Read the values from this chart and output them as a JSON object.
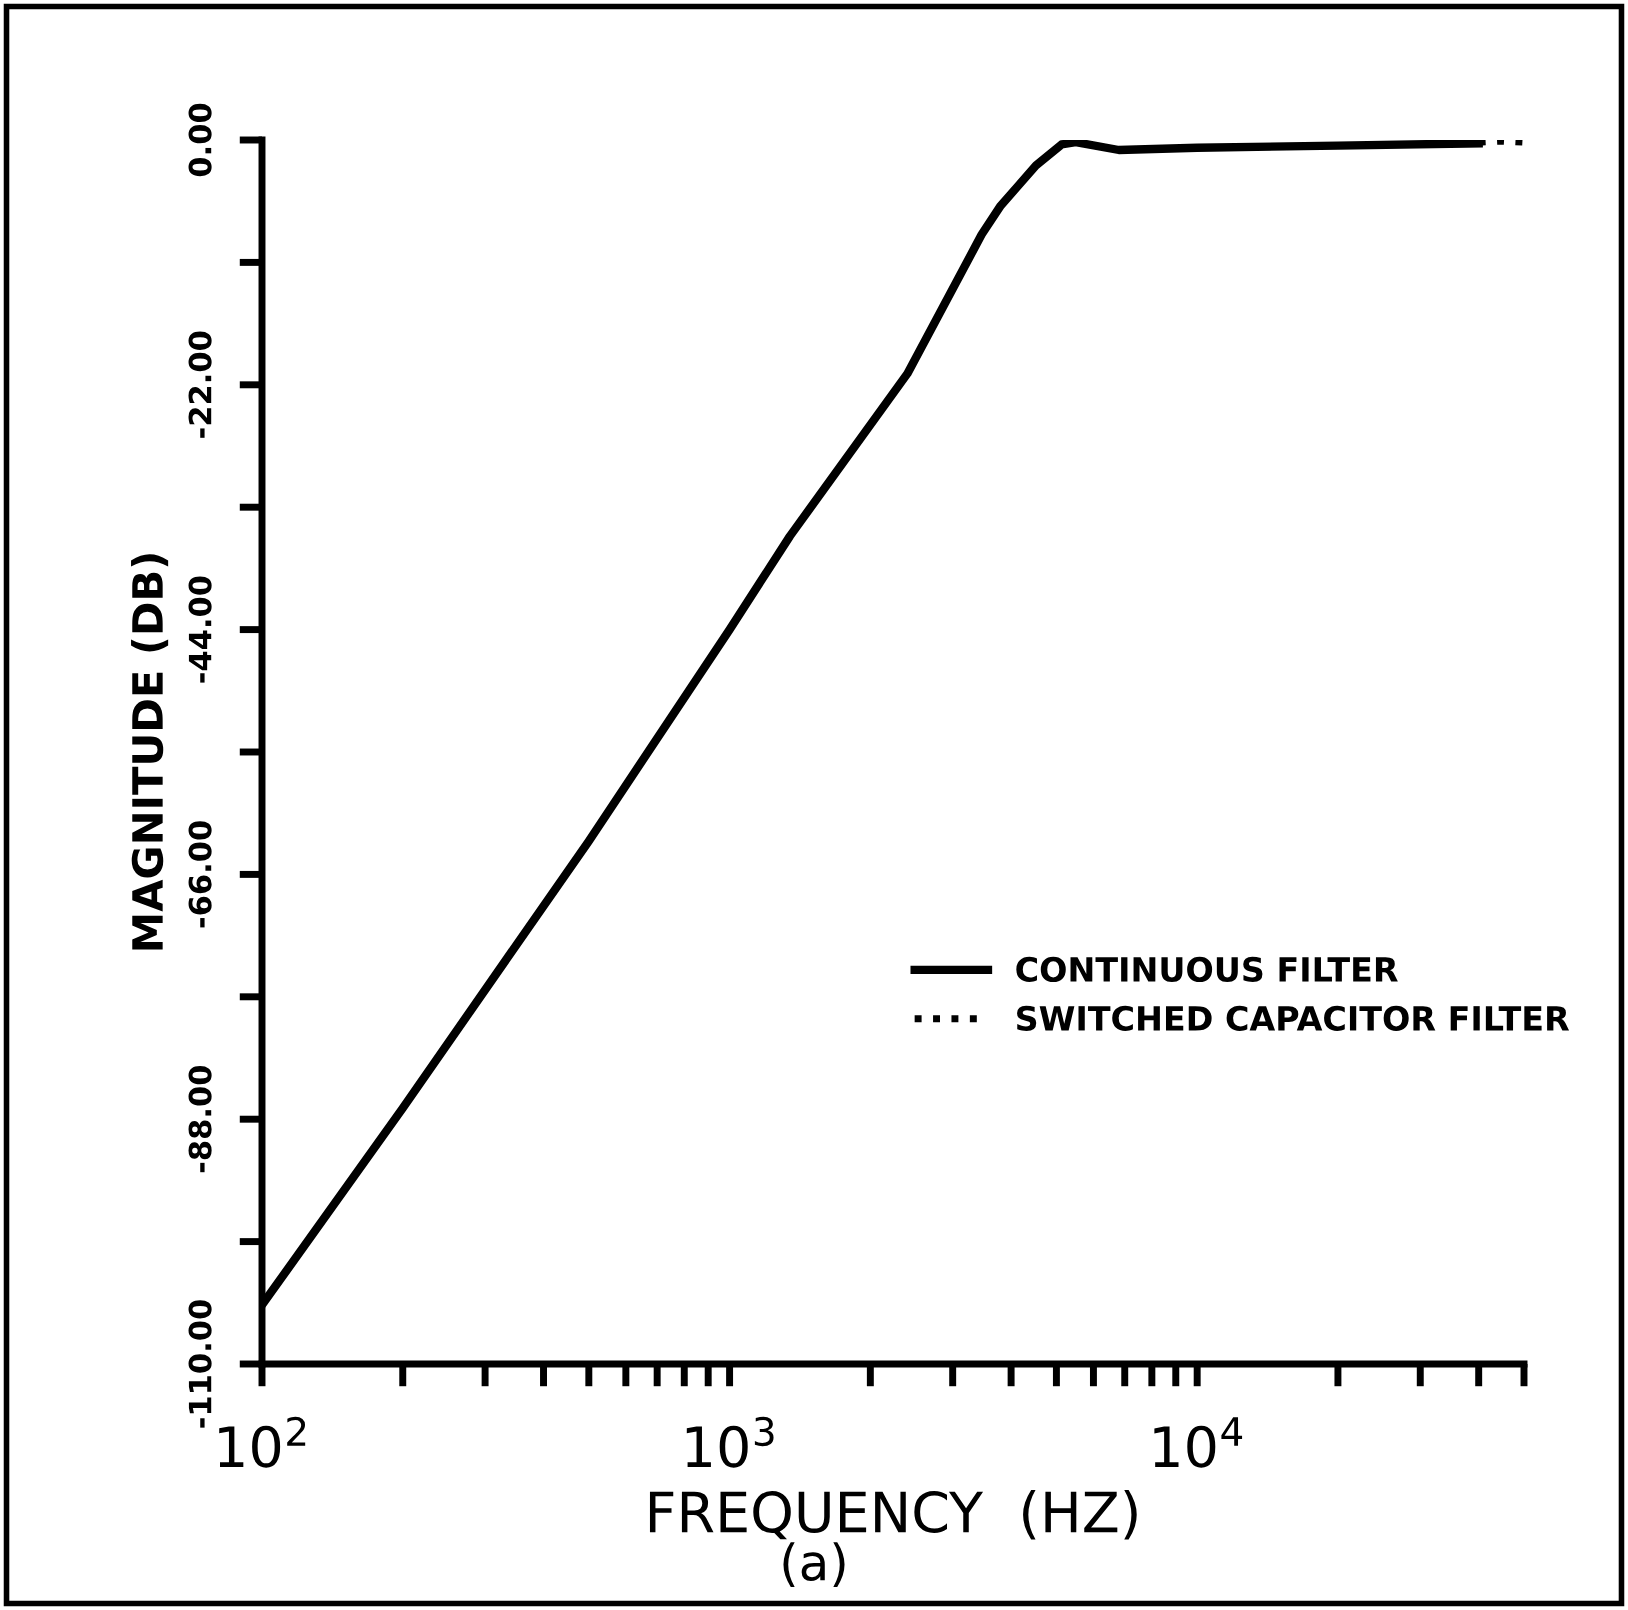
{
  "chart_data": {
    "type": "line",
    "xlabel": "FREQUENCY  (HZ)",
    "ylabel": "MAGNITUDE (DB)",
    "log": "x",
    "x": [
      100,
      200,
      500,
      1000,
      1346,
      2400,
      3460,
      3800,
      4520,
      5130,
      5500,
      6800,
      10000,
      20000,
      40000
    ],
    "series": [
      {
        "name": "CONTINUOUS FILTER",
        "color": "#000000",
        "line_style": "solid",
        "values": [
          -104.7,
          -87,
          -63,
          -44,
          -35.6,
          -21,
          -8.5,
          -5.9,
          -2.3,
          -0.4,
          -0.2,
          -0.9,
          -0.7,
          -0.5,
          -0.3
        ]
      },
      {
        "name": "SWITCHED CAPACITOR FILTER",
        "color": "#000000",
        "line_style": "dotted",
        "x": [
          40000,
          45000,
          50000
        ],
        "values": [
          -0.2,
          -0.1,
          -0.2
        ]
      }
    ],
    "xlim": [
      100,
      50000
    ],
    "xticks": [
      {
        "value": 100,
        "label": "10$^{2}$"
      },
      {
        "value": 200,
        "label": null
      },
      {
        "value": 300,
        "label": null
      },
      {
        "value": 400,
        "label": null
      },
      {
        "value": 500,
        "label": null
      },
      {
        "value": 600,
        "label": null
      },
      {
        "value": 700,
        "label": null
      },
      {
        "value": 800,
        "label": null
      },
      {
        "value": 900,
        "label": null
      },
      {
        "value": 1000,
        "label": "10$^{3}$"
      },
      {
        "value": 2000,
        "label": null
      },
      {
        "value": 3000,
        "label": null
      },
      {
        "value": 4000,
        "label": null
      },
      {
        "value": 5000,
        "label": null
      },
      {
        "value": 6000,
        "label": null
      },
      {
        "value": 7000,
        "label": null
      },
      {
        "value": 8000,
        "label": null
      },
      {
        "value": 9000,
        "label": null
      },
      {
        "value": 10000,
        "label": "10$^{4}$"
      },
      {
        "value": 20000,
        "label": null
      },
      {
        "value": 30000,
        "label": null
      },
      {
        "value": 40000,
        "label": null
      },
      {
        "value": 50000,
        "label": null
      }
    ],
    "ylim": [
      -110,
      0
    ],
    "yticks": [
      {
        "value": -110,
        "label": "-110.00"
      },
      {
        "value": -99,
        "label": null
      },
      {
        "value": -88,
        "label": "-88.00"
      },
      {
        "value": -77,
        "label": null
      },
      {
        "value": -66,
        "label": "-66.00"
      },
      {
        "value": -55,
        "label": null
      },
      {
        "value": -44,
        "label": "-44.00"
      },
      {
        "value": -33,
        "label": null
      },
      {
        "value": -22,
        "label": "-22.00"
      },
      {
        "value": -11,
        "label": null
      },
      {
        "value": 0,
        "label": "0.00"
      }
    ],
    "grid": false,
    "legend": "right",
    "marker": "none",
    "annotations": [
      "(a)"
    ]
  }
}
